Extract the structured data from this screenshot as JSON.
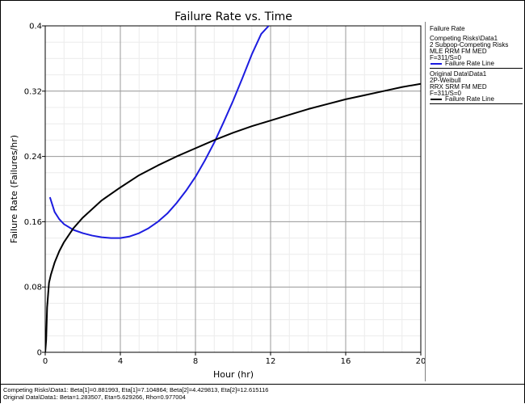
{
  "chart_data": {
    "type": "line",
    "title": "Failure Rate vs. Time",
    "xlabel": "Hour (hr)",
    "ylabel": "Failure Rate (Failures/hr)",
    "xlim": [
      0,
      20
    ],
    "ylim": [
      0,
      0.4
    ],
    "x_ticks": [
      "0",
      "4",
      "8",
      "12",
      "16",
      "20"
    ],
    "y_ticks": [
      "0",
      "0.08",
      "0.16",
      "0.24",
      "0.32",
      "0.4"
    ],
    "grid": true,
    "legend_position": "right",
    "series": [
      {
        "name": "Failure Rate Line",
        "group": "Competing Risks\\Data1",
        "color": "#1c1ce0",
        "x": [
          0.25,
          0.5,
          0.75,
          1.0,
          1.5,
          2.0,
          2.5,
          3.0,
          3.5,
          4.0,
          4.5,
          5.0,
          5.5,
          6.0,
          6.5,
          7.0,
          7.5,
          8.0,
          8.5,
          9.0,
          9.5,
          10.0,
          10.5,
          11.0,
          11.5,
          11.9
        ],
        "y": [
          0.19,
          0.172,
          0.163,
          0.157,
          0.15,
          0.146,
          0.143,
          0.141,
          0.14,
          0.14,
          0.142,
          0.146,
          0.152,
          0.16,
          0.17,
          0.183,
          0.198,
          0.215,
          0.235,
          0.257,
          0.282,
          0.308,
          0.336,
          0.365,
          0.39,
          0.4
        ]
      },
      {
        "name": "Failure Rate Line",
        "group": "Original Data\\Data1",
        "color": "#000000",
        "x": [
          0,
          0.05,
          0.1,
          0.2,
          0.3,
          0.5,
          0.75,
          1.0,
          1.5,
          2.0,
          3.0,
          4.0,
          5.0,
          6.0,
          7.0,
          8.0,
          9.0,
          10.0,
          11.0,
          12.0,
          13.0,
          14.0,
          15.0,
          16.0,
          17.0,
          18.0,
          19.0,
          20.0
        ],
        "y": [
          0,
          0.015,
          0.055,
          0.085,
          0.095,
          0.11,
          0.124,
          0.135,
          0.152,
          0.165,
          0.186,
          0.202,
          0.217,
          0.229,
          0.24,
          0.25,
          0.26,
          0.269,
          0.277,
          0.284,
          0.291,
          0.298,
          0.304,
          0.31,
          0.315,
          0.32,
          0.325,
          0.329
        ]
      }
    ]
  },
  "legend": {
    "header": "Failure Rate",
    "groups": [
      {
        "lines": [
          "Competing Risks\\Data1",
          "2 Subpop-Competing Risks",
          "MLE RRM FM MED",
          "F=311/S=0"
        ],
        "line_label": "Failure Rate Line",
        "color": "#1c1ce0"
      },
      {
        "lines": [
          "Original Data\\Data1",
          "2P-Weibull",
          "RRX SRM FM MED",
          "F=311/S=0"
        ],
        "line_label": "Failure Rate Line",
        "color": "#000000"
      }
    ]
  },
  "footer": {
    "line1": "Competing Risks\\Data1: Beta[1]=0.881993, Eta[1]=7.104864; Beta[2]=4.429813, Eta[2]=12.615116",
    "line2": "Original Data\\Data1: Beta=1.283507, Eta=5.629266, Rho=0.977004"
  }
}
